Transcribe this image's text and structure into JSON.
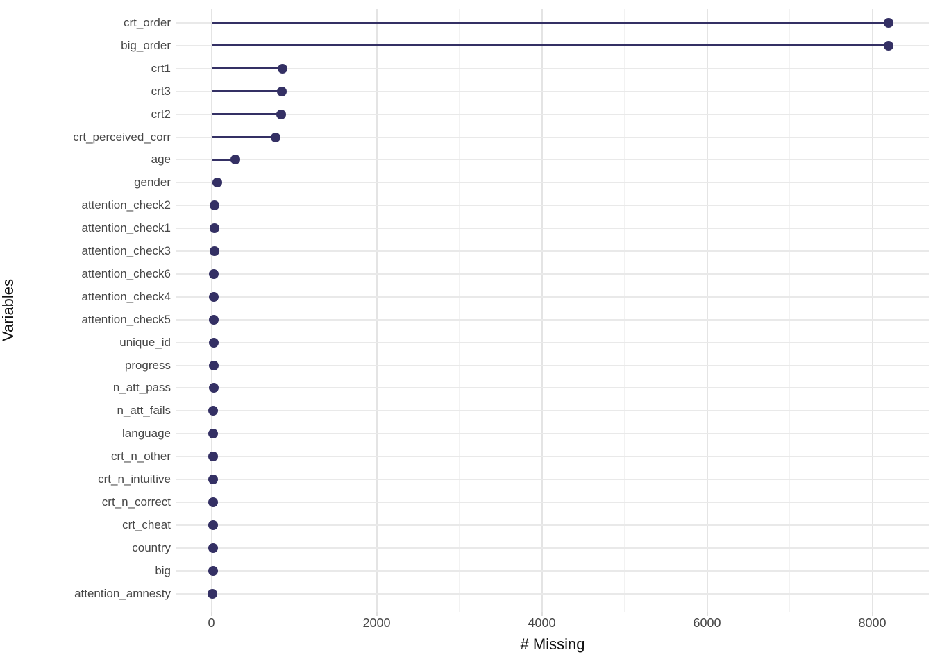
{
  "style": {
    "background": "#ffffff",
    "accent": "#343064",
    "grid_major": "#e4e4e4",
    "grid_minor": "#f2f2f2",
    "axis_text_color": "#474747",
    "axis_title_color": "#111111"
  },
  "chart_data": {
    "type": "bar",
    "variant": "lollipop",
    "orientation": "horizontal",
    "title": "",
    "xlabel": "# Missing",
    "ylabel": "Variables",
    "series_name": "# Missing",
    "xlim": [
      -430,
      8690
    ],
    "x_major_ticks": [
      0,
      2000,
      4000,
      6000,
      8000
    ],
    "x_minor_ticks": [
      1000,
      3000,
      5000,
      7000
    ],
    "grid": "major and minor vertical gridlines, one horizontal gridline per category, light gray on white",
    "legend": false,
    "point_color": "#343064",
    "categories": [
      "crt_order",
      "big_order",
      "crt1",
      "crt3",
      "crt2",
      "crt_perceived_corr",
      "age",
      "gender",
      "attention_check2",
      "attention_check1",
      "attention_check3",
      "attention_check6",
      "attention_check4",
      "attention_check5",
      "unique_id",
      "progress",
      "n_att_pass",
      "n_att_fails",
      "language",
      "crt_n_other",
      "crt_n_intuitive",
      "crt_n_correct",
      "crt_cheat",
      "country",
      "big",
      "attention_amnesty"
    ],
    "values": [
      8200,
      8200,
      865,
      850,
      845,
      780,
      290,
      70,
      40,
      38,
      35,
      33,
      32,
      31,
      28,
      27,
      26,
      25,
      24,
      23,
      22,
      21,
      20,
      19,
      18,
      15
    ]
  }
}
